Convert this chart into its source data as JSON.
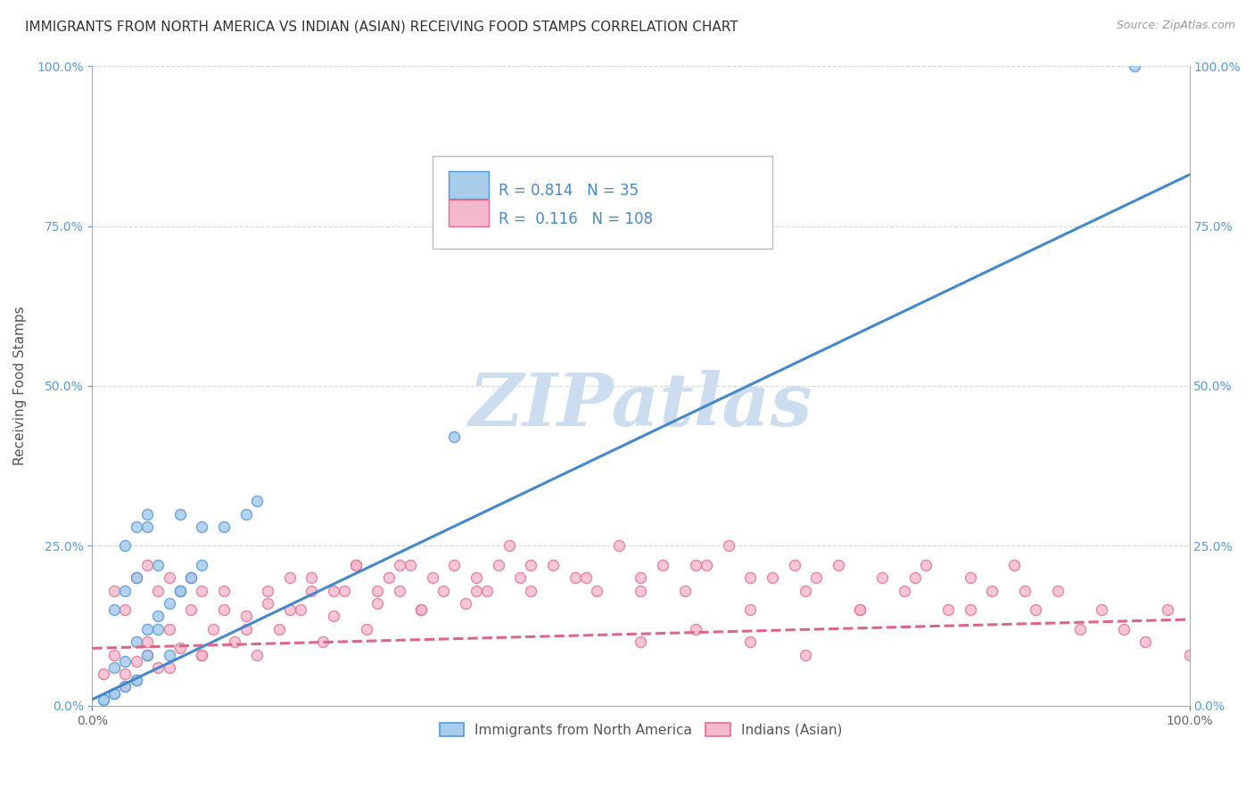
{
  "title": "IMMIGRANTS FROM NORTH AMERICA VS INDIAN (ASIAN) RECEIVING FOOD STAMPS CORRELATION CHART",
  "source": "Source: ZipAtlas.com",
  "ylabel": "Receiving Food Stamps",
  "xlabel": "",
  "xlim": [
    0,
    1.0
  ],
  "ylim": [
    0,
    1.0
  ],
  "ytick_positions": [
    0.0,
    0.25,
    0.5,
    0.75,
    1.0
  ],
  "ytick_labels": [
    "0.0%",
    "25.0%",
    "50.0%",
    "75.0%",
    "100.0%"
  ],
  "xtick_positions": [
    0.0,
    1.0
  ],
  "xtick_labels": [
    "0.0%",
    "100.0%"
  ],
  "blue_R": 0.814,
  "blue_N": 35,
  "pink_R": 0.116,
  "pink_N": 108,
  "blue_color": "#a8ccea",
  "blue_edge_color": "#5599dd",
  "blue_line_color": "#4488cc",
  "pink_color": "#f5b8cc",
  "pink_edge_color": "#e07090",
  "pink_line_color": "#dd6688",
  "watermark": "ZIPatlas",
  "watermark_color": "#ccddf0",
  "legend_label_blue": "Immigrants from North America",
  "legend_label_pink": "Indians (Asian)",
  "blue_scatter_x": [
    0.01,
    0.02,
    0.02,
    0.03,
    0.03,
    0.04,
    0.04,
    0.05,
    0.05,
    0.06,
    0.06,
    0.07,
    0.08,
    0.08,
    0.09,
    0.1,
    0.1,
    0.12,
    0.14,
    0.15,
    0.02,
    0.03,
    0.04,
    0.05,
    0.06,
    0.07,
    0.08,
    0.03,
    0.04,
    0.05,
    0.01,
    0.02,
    0.04,
    0.33,
    0.95
  ],
  "blue_scatter_y": [
    0.01,
    0.02,
    0.15,
    0.03,
    0.18,
    0.04,
    0.2,
    0.08,
    0.28,
    0.12,
    0.22,
    0.08,
    0.18,
    0.3,
    0.2,
    0.22,
    0.28,
    0.28,
    0.3,
    0.32,
    0.06,
    0.07,
    0.1,
    0.12,
    0.14,
    0.16,
    0.18,
    0.25,
    0.28,
    0.3,
    0.01,
    0.02,
    0.04,
    0.42,
    1.0
  ],
  "pink_scatter_x": [
    0.01,
    0.02,
    0.02,
    0.03,
    0.03,
    0.04,
    0.04,
    0.05,
    0.05,
    0.06,
    0.06,
    0.07,
    0.07,
    0.08,
    0.08,
    0.09,
    0.09,
    0.1,
    0.1,
    0.11,
    0.12,
    0.13,
    0.14,
    0.15,
    0.16,
    0.17,
    0.18,
    0.19,
    0.2,
    0.21,
    0.22,
    0.23,
    0.24,
    0.25,
    0.26,
    0.27,
    0.28,
    0.29,
    0.3,
    0.31,
    0.32,
    0.33,
    0.34,
    0.35,
    0.36,
    0.37,
    0.38,
    0.39,
    0.4,
    0.42,
    0.44,
    0.46,
    0.48,
    0.5,
    0.52,
    0.54,
    0.56,
    0.58,
    0.6,
    0.62,
    0.64,
    0.66,
    0.68,
    0.7,
    0.72,
    0.74,
    0.76,
    0.78,
    0.8,
    0.82,
    0.84,
    0.86,
    0.88,
    0.9,
    0.92,
    0.94,
    0.96,
    0.98,
    1.0,
    0.03,
    0.05,
    0.07,
    0.1,
    0.12,
    0.14,
    0.16,
    0.18,
    0.2,
    0.22,
    0.24,
    0.26,
    0.28,
    0.3,
    0.35,
    0.4,
    0.45,
    0.5,
    0.55,
    0.6,
    0.65,
    0.7,
    0.75,
    0.8,
    0.85,
    0.5,
    0.55,
    0.6,
    0.65
  ],
  "pink_scatter_y": [
    0.05,
    0.08,
    0.18,
    0.03,
    0.15,
    0.07,
    0.2,
    0.1,
    0.22,
    0.06,
    0.18,
    0.12,
    0.2,
    0.09,
    0.18,
    0.15,
    0.2,
    0.08,
    0.18,
    0.12,
    0.18,
    0.1,
    0.14,
    0.08,
    0.16,
    0.12,
    0.2,
    0.15,
    0.18,
    0.1,
    0.14,
    0.18,
    0.22,
    0.12,
    0.16,
    0.2,
    0.18,
    0.22,
    0.15,
    0.2,
    0.18,
    0.22,
    0.16,
    0.2,
    0.18,
    0.22,
    0.25,
    0.2,
    0.18,
    0.22,
    0.2,
    0.18,
    0.25,
    0.2,
    0.22,
    0.18,
    0.22,
    0.25,
    0.15,
    0.2,
    0.22,
    0.2,
    0.22,
    0.15,
    0.2,
    0.18,
    0.22,
    0.15,
    0.2,
    0.18,
    0.22,
    0.15,
    0.18,
    0.12,
    0.15,
    0.12,
    0.1,
    0.15,
    0.08,
    0.05,
    0.08,
    0.06,
    0.08,
    0.15,
    0.12,
    0.18,
    0.15,
    0.2,
    0.18,
    0.22,
    0.18,
    0.22,
    0.15,
    0.18,
    0.22,
    0.2,
    0.18,
    0.22,
    0.2,
    0.18,
    0.15,
    0.2,
    0.15,
    0.18,
    0.1,
    0.12,
    0.1,
    0.08
  ],
  "blue_line_x": [
    0.0,
    1.0
  ],
  "blue_line_y": [
    0.01,
    0.83
  ],
  "pink_line_x": [
    0.0,
    1.0
  ],
  "pink_line_y": [
    0.09,
    0.135
  ],
  "title_fontsize": 11,
  "axis_label_fontsize": 11,
  "tick_fontsize": 10
}
